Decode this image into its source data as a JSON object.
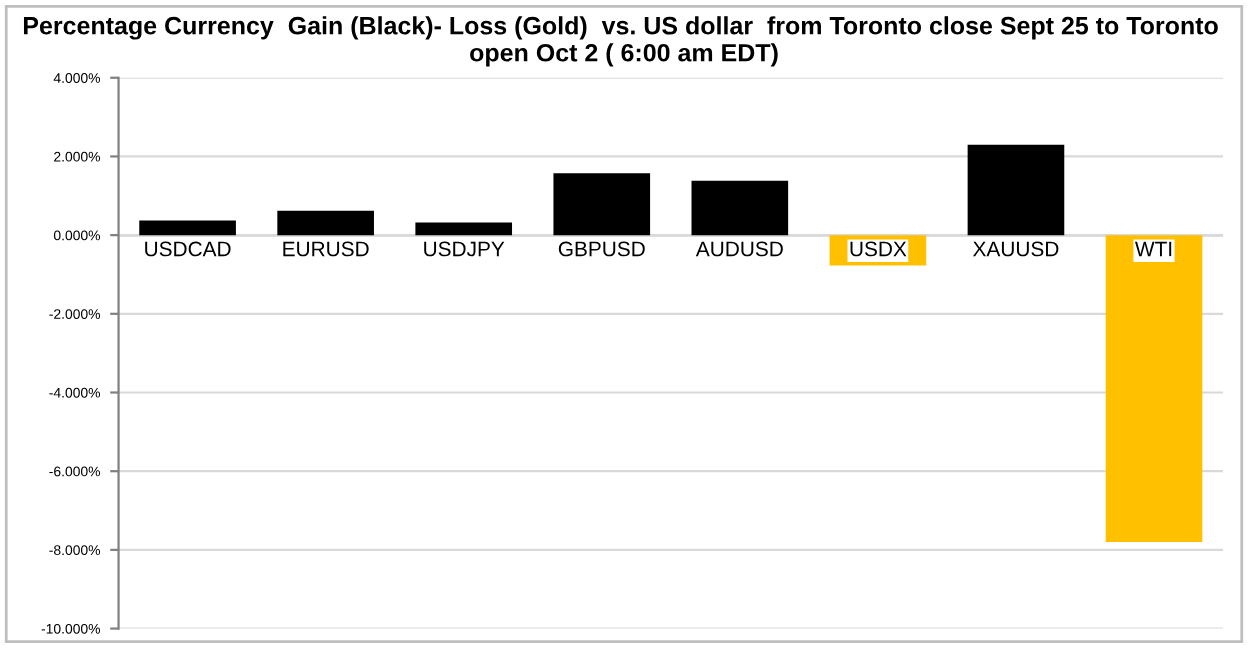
{
  "chart_data": {
    "type": "bar",
    "title": "Percentage Currency  Gain (Black)- Loss (Gold)  vs. US dollar  from Toronto close Sept 25 to Toronto  open Oct 2 ( 6:00 am EDT)",
    "categories": [
      "USDCAD",
      "EURUSD",
      "USDJPY",
      "GBPUSD",
      "AUDUSD",
      "USDX",
      "XAUUSD",
      "WTI"
    ],
    "values": [
      0.37,
      0.62,
      0.32,
      1.57,
      1.38,
      -0.77,
      2.3,
      -7.8
    ],
    "colors": [
      "#000000",
      "#000000",
      "#000000",
      "#000000",
      "#000000",
      "#ffc000",
      "#000000",
      "#ffc000"
    ],
    "ylim": [
      -10,
      4
    ],
    "yticks": [
      {
        "value": -10,
        "label": "-10.000%"
      },
      {
        "value": -8,
        "label": "-8.000%"
      },
      {
        "value": -6,
        "label": "-6.000%"
      },
      {
        "value": -4,
        "label": "-4.000%"
      },
      {
        "value": -2,
        "label": "-2.000%"
      },
      {
        "value": 0,
        "label": "0.000%"
      },
      {
        "value": 2,
        "label": "2.000%"
      },
      {
        "value": 4,
        "label": "4.000%"
      }
    ],
    "grid": "y"
  }
}
